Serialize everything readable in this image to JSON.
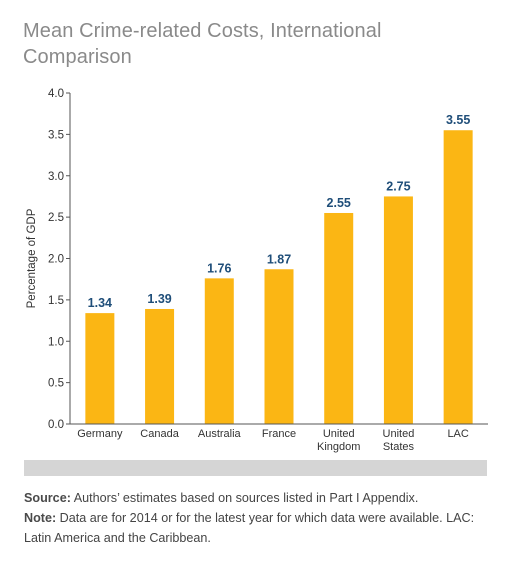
{
  "title": "Mean Crime-related Costs, International Comparison",
  "chart_data": {
    "type": "bar",
    "categories": [
      [
        "Germany"
      ],
      [
        "Canada"
      ],
      [
        "Australia"
      ],
      [
        "France"
      ],
      [
        "United",
        "Kingdom"
      ],
      [
        "United",
        "States"
      ],
      [
        "LAC"
      ]
    ],
    "values": [
      1.34,
      1.39,
      1.76,
      1.87,
      2.55,
      2.75,
      3.55
    ],
    "value_labels": [
      "1.34",
      "1.39",
      "1.76",
      "1.87",
      "2.55",
      "2.75",
      "3.55"
    ],
    "ylabel": "Percentage of GDP",
    "xlabel": "",
    "ylim": [
      0,
      4.0
    ],
    "yticks": [
      "0.0",
      "0.5",
      "1.0",
      "1.5",
      "2.0",
      "2.5",
      "3.0",
      "3.5",
      "4.0"
    ],
    "grid": false,
    "bar_color": "#fbb614",
    "label_color": "#1f4e79",
    "axis_color": "#555555"
  },
  "footer": {
    "source_label": "Source:",
    "source_text": " Authors’ estimates based on sources listed in Part I Appendix.",
    "note_label": "Note:",
    "note_text": " Data are for 2014 or for the latest year for which data were available. LAC: Latin America and the Caribbean."
  }
}
